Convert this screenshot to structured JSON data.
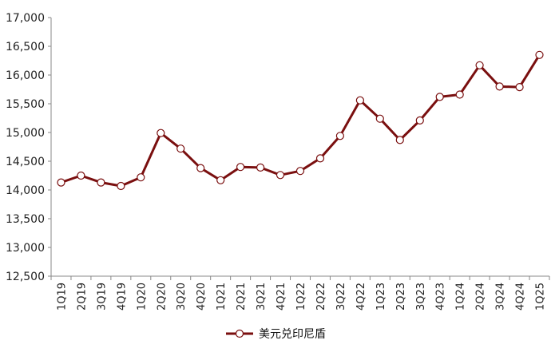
{
  "chart_data": {
    "type": "line",
    "ylim": [
      12500,
      17000
    ],
    "yticks": [
      "12,500",
      "13,000",
      "13,500",
      "14,000",
      "14,500",
      "15,000",
      "15,500",
      "16,000",
      "16,500",
      "17,000"
    ],
    "ytick_values": [
      12500,
      13000,
      13500,
      14000,
      14500,
      15000,
      15500,
      16000,
      16500,
      17000
    ],
    "categories": [
      "1Q19",
      "2Q19",
      "3Q19",
      "4Q19",
      "1Q20",
      "2Q20",
      "3Q20",
      "4Q20",
      "1Q21",
      "2Q21",
      "3Q21",
      "4Q21",
      "1Q22",
      "2Q22",
      "3Q22",
      "4Q22",
      "1Q23",
      "2Q23",
      "3Q23",
      "4Q23",
      "1Q24",
      "2Q24",
      "3Q24",
      "4Q24",
      "1Q25"
    ],
    "series": [
      {
        "name": "美元兑印尼盾",
        "values": [
          14130,
          14250,
          14130,
          14070,
          14220,
          14990,
          14720,
          14380,
          14170,
          14400,
          14390,
          14260,
          14330,
          14550,
          14940,
          15560,
          15240,
          14870,
          15210,
          15620,
          15660,
          16170,
          15800,
          15790,
          16350
        ]
      }
    ],
    "grid": false,
    "legend_position": "bottom-center",
    "colors": {
      "line": "#7a0f0f",
      "marker_fill": "#ffffff",
      "axis": "#888888"
    }
  }
}
